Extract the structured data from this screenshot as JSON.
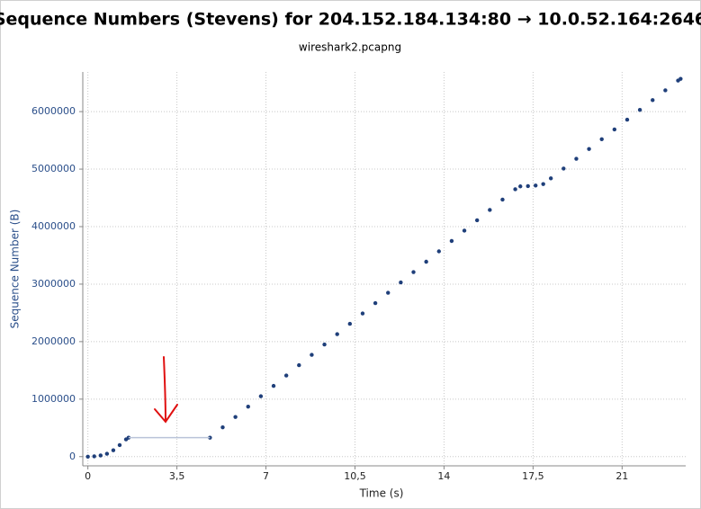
{
  "chart_data": {
    "type": "scatter",
    "title": "Sequence Numbers (Stevens) for 204.152.184.134:80 → 10.0.52.164:2646",
    "subtitle": "wireshark2.pcapng",
    "x_label": "Time (s)",
    "y_label": "Sequence Number (B)",
    "xlim": [
      -0.2,
      23.5
    ],
    "ylim": [
      -160000,
      6690000
    ],
    "xticks": [
      0,
      {
        "value": 3.5,
        "label": "3,5"
      },
      7,
      {
        "value": 10.5,
        "label": "10,5"
      },
      14,
      {
        "value": 17.5,
        "label": "17,5"
      },
      21
    ],
    "yticks": [
      0,
      1000000,
      2000000,
      3000000,
      4000000,
      5000000,
      6000000
    ],
    "grid": true,
    "series": [
      {
        "color": "#1f3f7a",
        "style": "dots",
        "x": [
          0,
          0.25,
          0.5,
          0.75,
          1.0,
          1.25,
          1.5,
          1.6,
          4.8,
          5.3,
          5.8,
          6.3,
          6.8,
          7.3,
          7.8,
          8.3,
          8.8,
          9.3,
          9.8,
          10.3,
          10.8,
          11.3,
          11.8,
          12.3,
          12.8,
          13.3,
          13.8,
          14.3,
          14.8,
          15.3,
          15.8,
          16.3,
          16.8,
          17.0,
          17.3,
          17.6,
          17.9,
          18.2,
          18.7,
          19.2,
          19.7,
          20.2,
          20.7,
          21.2,
          21.7,
          22.2,
          22.7,
          23.2,
          23.3
        ],
        "values": [
          0,
          5000,
          20000,
          50000,
          110000,
          200000,
          300000,
          330000,
          330000,
          510000,
          690000,
          870000,
          1050000,
          1230000,
          1410000,
          1590000,
          1770000,
          1950000,
          2130000,
          2310000,
          2490000,
          2670000,
          2850000,
          3030000,
          3210000,
          3390000,
          3570000,
          3750000,
          3930000,
          4110000,
          4290000,
          4470000,
          4650000,
          4700000,
          4705000,
          4715000,
          4740000,
          4840000,
          5010000,
          5180000,
          5350000,
          5520000,
          5690000,
          5860000,
          6030000,
          6200000,
          6370000,
          6540000,
          6570000
        ]
      },
      {
        "color": "#b9c3d8",
        "style": "line",
        "x": [
          1.6,
          4.8
        ],
        "values": [
          330000,
          330000
        ]
      }
    ]
  }
}
